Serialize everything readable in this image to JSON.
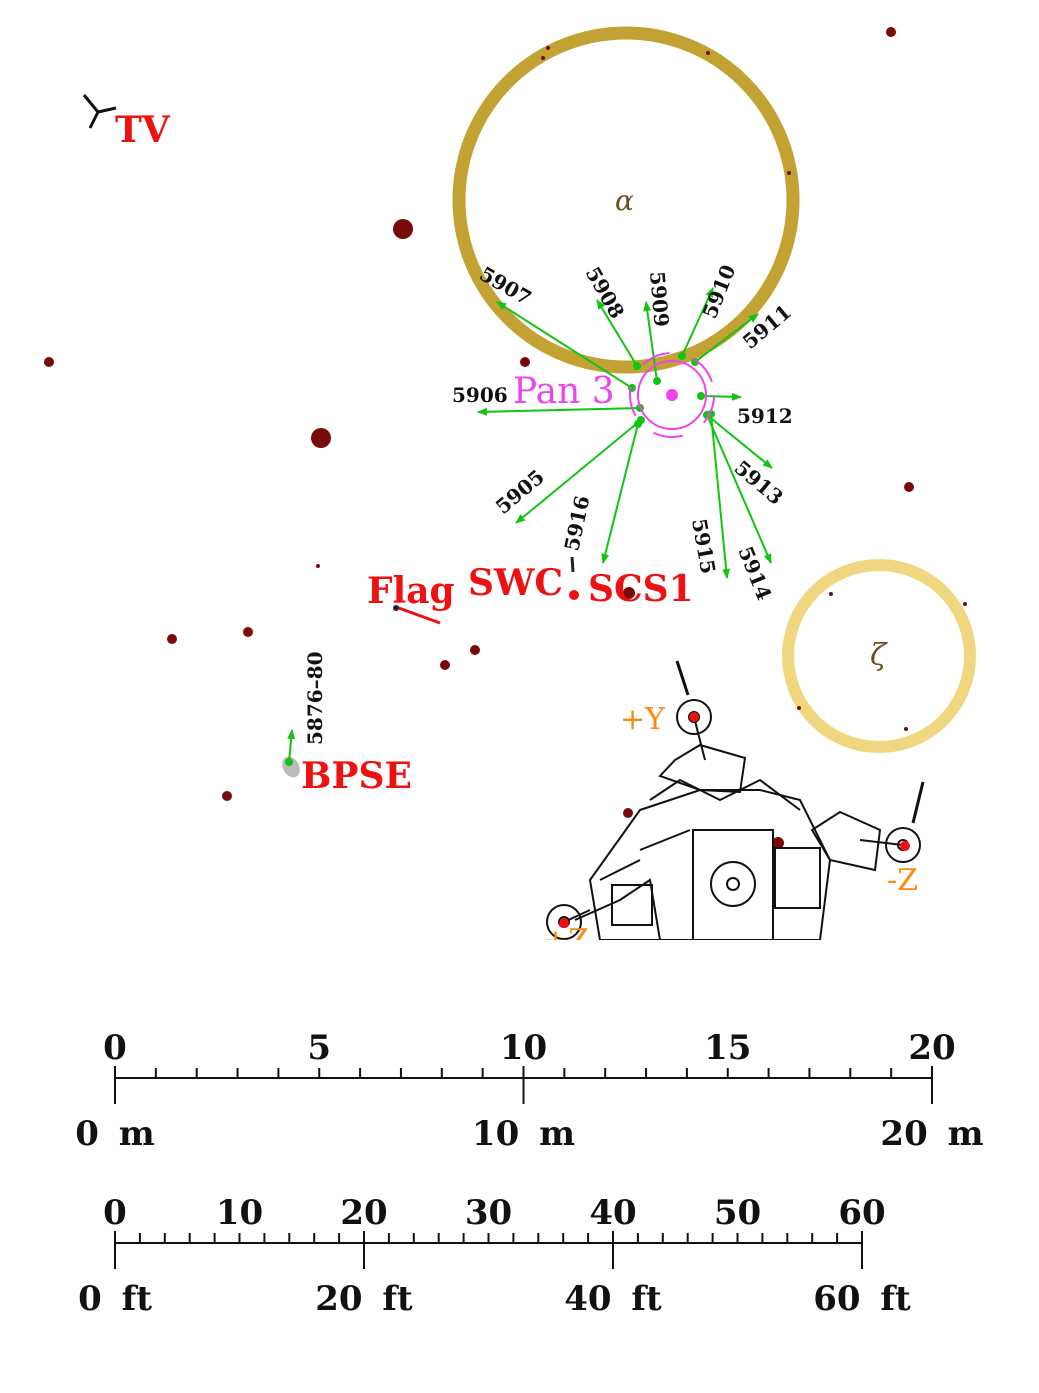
{
  "colors": {
    "crater_alpha": "#c1a232",
    "crater_zeta": "#f0d77f",
    "rock": "#7a0a0a",
    "arrow": "#11c411",
    "pan": "#ee44ee",
    "label": "#ee1111",
    "axis_label": "#ff8811"
  },
  "craters": {
    "alpha": "α",
    "zeta": "ζ"
  },
  "labels": {
    "tv": "TV",
    "pan": "Pan 3",
    "flag": "Flag",
    "swc": "SWC",
    "scs": "SCS1",
    "bpse": "BPSE",
    "bpse_photos": "5876–80",
    "plus_y": "+Y",
    "minus_z": "-Z",
    "plus_z": "+Z"
  },
  "photos": [
    "5905",
    "5906",
    "5907",
    "5908",
    "5909",
    "5910",
    "5911",
    "5912",
    "5913",
    "5914",
    "5915",
    "5916"
  ],
  "scale_m": {
    "ticks": [
      "0",
      "5",
      "10",
      "15",
      "20"
    ],
    "labels": [
      "0 m",
      "10 m",
      "20 m"
    ]
  },
  "scale_ft": {
    "ticks": [
      "0",
      "10",
      "20",
      "30",
      "40",
      "50",
      "60"
    ],
    "labels": [
      "0 ft",
      "20 ft",
      "40 ft",
      "60 ft"
    ]
  }
}
